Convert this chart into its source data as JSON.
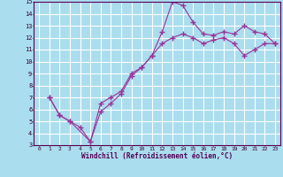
{
  "xlabel": "Windchill (Refroidissement éolien,°C)",
  "xlim": [
    -0.5,
    23.5
  ],
  "ylim": [
    3,
    15
  ],
  "xticks": [
    0,
    1,
    2,
    3,
    4,
    5,
    6,
    7,
    8,
    9,
    10,
    11,
    12,
    13,
    14,
    15,
    16,
    17,
    18,
    19,
    20,
    21,
    22,
    23
  ],
  "yticks": [
    3,
    4,
    5,
    6,
    7,
    8,
    9,
    10,
    11,
    12,
    13,
    14,
    15
  ],
  "line_color": "#993399",
  "bg_color": "#aaddee",
  "grid_color": "#ffffff",
  "line1_x": [
    1,
    2,
    3,
    4,
    5,
    6,
    7,
    8,
    9,
    10,
    11,
    12,
    13,
    14,
    15,
    16,
    17,
    18,
    19,
    20,
    21,
    22,
    23
  ],
  "line1_y": [
    7.0,
    5.5,
    5.0,
    4.5,
    3.3,
    6.5,
    7.0,
    7.5,
    9.0,
    9.5,
    10.5,
    12.5,
    15.0,
    14.7,
    13.3,
    12.3,
    12.2,
    12.5,
    12.3,
    13.0,
    12.5,
    12.3,
    11.5
  ],
  "line2_x": [
    1,
    2,
    3,
    5,
    6,
    7,
    8,
    9,
    10,
    11,
    12,
    13,
    14,
    15,
    16,
    17,
    18,
    19,
    20,
    21,
    22,
    23
  ],
  "line2_y": [
    7.0,
    5.5,
    5.0,
    3.3,
    5.8,
    6.5,
    7.3,
    8.8,
    9.5,
    10.5,
    11.5,
    12.0,
    12.3,
    12.0,
    11.5,
    11.8,
    12.0,
    11.5,
    10.5,
    11.0,
    11.5,
    11.5
  ]
}
